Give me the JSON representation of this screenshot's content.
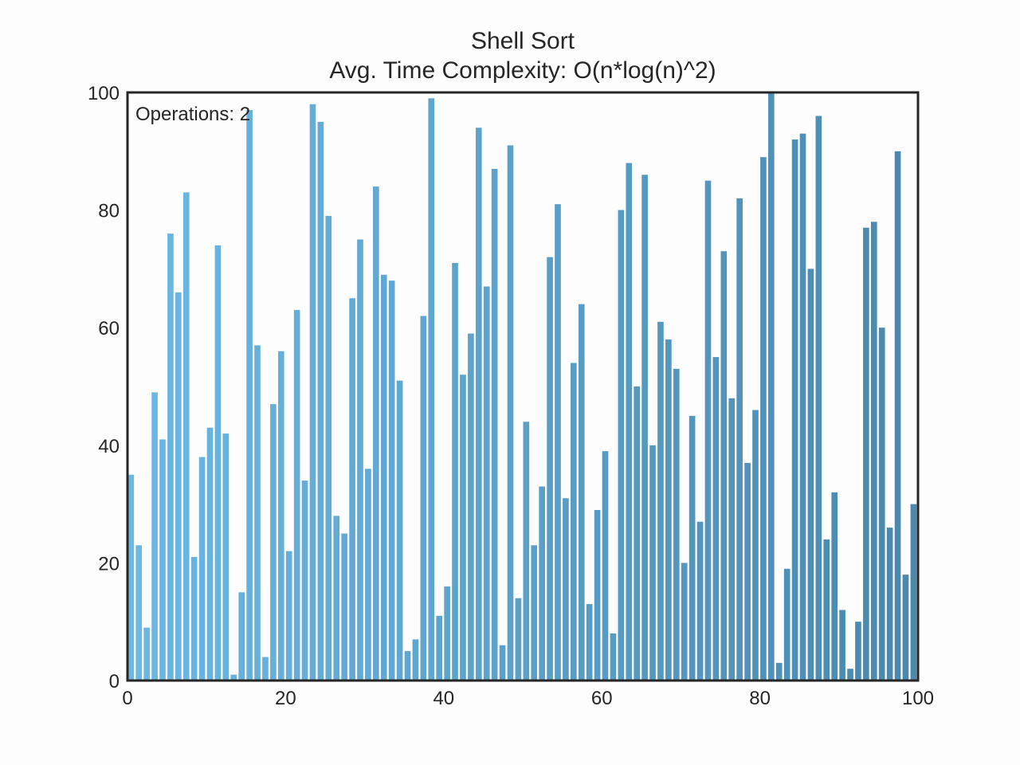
{
  "chart_data": {
    "type": "bar",
    "title": "Shell Sort",
    "subtitle": "Avg. Time Complexity: O(n*log(n)^2)",
    "annotation": "Operations: 2",
    "xlim": [
      0,
      100
    ],
    "ylim": [
      0,
      100
    ],
    "xticks": [
      "0",
      "20",
      "40",
      "60",
      "80",
      "100"
    ],
    "yticks": [
      "0",
      "20",
      "40",
      "60",
      "80",
      "100"
    ],
    "grid": false,
    "colors": {
      "start": "#6bb8e3",
      "end": "#4a88ad",
      "frame": "#262626",
      "background": "#fdfdfd"
    },
    "values": [
      35,
      23,
      9,
      49,
      41,
      76,
      66,
      83,
      21,
      38,
      43,
      74,
      42,
      1,
      15,
      97,
      57,
      4,
      47,
      56,
      22,
      63,
      34,
      98,
      95,
      79,
      28,
      25,
      65,
      75,
      36,
      84,
      69,
      68,
      51,
      5,
      7,
      62,
      99,
      11,
      16,
      71,
      52,
      59,
      94,
      67,
      87,
      6,
      91,
      14,
      44,
      23,
      33,
      72,
      81,
      31,
      54,
      64,
      13,
      29,
      39,
      8,
      80,
      88,
      50,
      86,
      40,
      61,
      58,
      53,
      20,
      45,
      27,
      85,
      55,
      73,
      48,
      82,
      37,
      46,
      89,
      100,
      3,
      19,
      92,
      93,
      70,
      96,
      24,
      32,
      12,
      2,
      10,
      77,
      78,
      60,
      26,
      90,
      18,
      30
    ]
  }
}
